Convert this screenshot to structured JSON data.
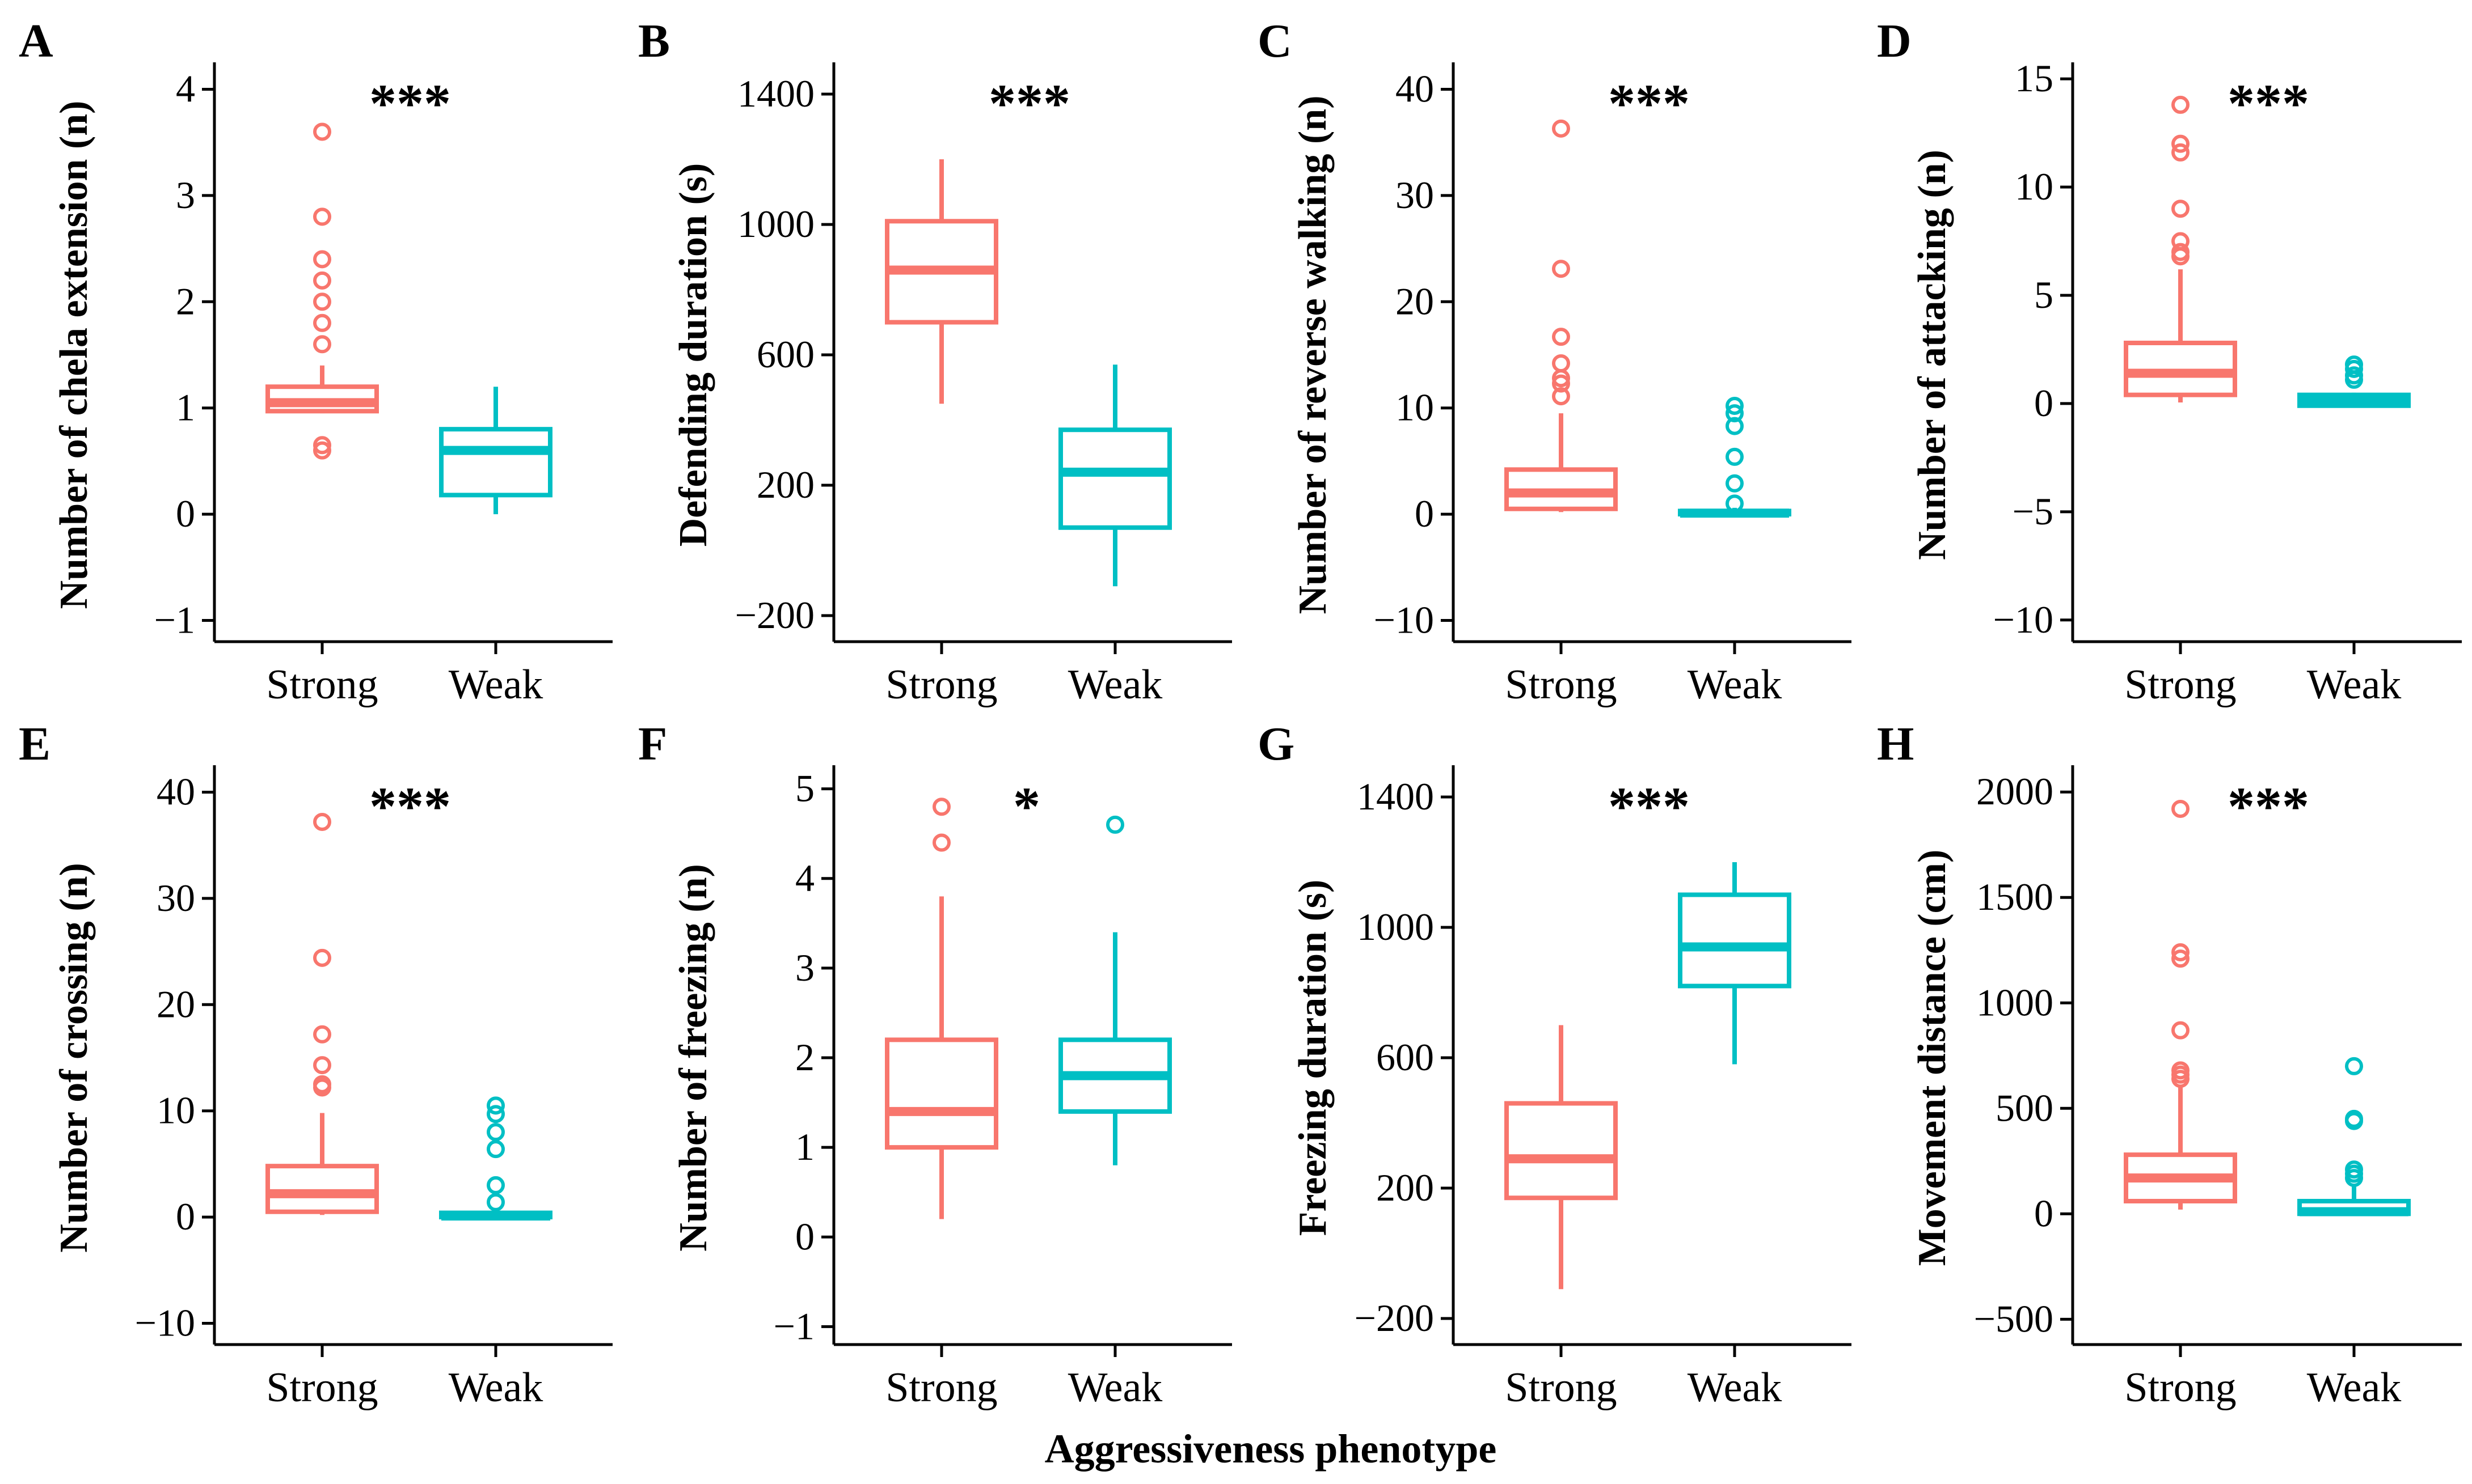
{
  "figure": {
    "xlabel": "Aggressiveness phenotype",
    "colors": {
      "Strong": "#f8766d",
      "Weak": "#00bfc4"
    }
  },
  "chart_data": [
    {
      "panel": "A",
      "type": "box",
      "ylabel": "Number of chela extension (n)",
      "significance": "***",
      "ylim": [
        -1.2,
        4.2
      ],
      "yticks": [
        -1,
        0,
        1,
        2,
        3,
        4
      ],
      "categories": [
        "Strong",
        "Weak"
      ],
      "boxes": [
        {
          "group": "Strong",
          "whisker_low": 0.95,
          "q1": 0.97,
          "median": 1.05,
          "q3": 1.2,
          "whisker_high": 1.4,
          "outliers": [
            3.6,
            2.8,
            2.4,
            2.2,
            2.0,
            1.8,
            1.6,
            0.65,
            0.6
          ]
        },
        {
          "group": "Weak",
          "whisker_low": 0.0,
          "q1": 0.18,
          "median": 0.6,
          "q3": 0.8,
          "whisker_high": 1.2,
          "outliers": []
        }
      ]
    },
    {
      "panel": "B",
      "type": "box",
      "ylabel": "Defending duration (s)",
      "significance": "***",
      "ylim": [
        -280,
        1480
      ],
      "yticks": [
        -200,
        200,
        600,
        1000,
        1400
      ],
      "categories": [
        "Strong",
        "Weak"
      ],
      "boxes": [
        {
          "group": "Strong",
          "whisker_low": 450,
          "q1": 700,
          "median": 860,
          "q3": 1010,
          "whisker_high": 1200,
          "outliers": []
        },
        {
          "group": "Weak",
          "whisker_low": -110,
          "q1": 70,
          "median": 240,
          "q3": 370,
          "whisker_high": 570,
          "outliers": []
        }
      ]
    },
    {
      "panel": "C",
      "type": "box",
      "ylabel": "Number of reverse walking (n)",
      "significance": "***",
      "ylim": [
        -12,
        42
      ],
      "yticks": [
        -10,
        0,
        10,
        20,
        30,
        40
      ],
      "categories": [
        "Strong",
        "Weak"
      ],
      "boxes": [
        {
          "group": "Strong",
          "whisker_low": 0.2,
          "q1": 0.5,
          "median": 2,
          "q3": 4.2,
          "whisker_high": 9.5,
          "outliers": [
            36.3,
            23.1,
            16.7,
            14.2,
            12.8,
            12.3,
            11.1
          ]
        },
        {
          "group": "Weak",
          "whisker_low": 0.0,
          "q1": 0.0,
          "median": 0.1,
          "q3": 0.3,
          "whisker_high": 0.6,
          "outliers": [
            10.2,
            9.5,
            8.3,
            5.4,
            2.9,
            1.0
          ]
        }
      ]
    },
    {
      "panel": "D",
      "type": "box",
      "ylabel": "Number of attacking (n)",
      "significance": "***",
      "ylim": [
        -11,
        15.5
      ],
      "yticks": [
        -10,
        -5,
        0,
        5,
        10,
        15
      ],
      "categories": [
        "Strong",
        "Weak"
      ],
      "boxes": [
        {
          "group": "Strong",
          "whisker_low": 0.05,
          "q1": 0.4,
          "median": 1.4,
          "q3": 2.8,
          "whisker_high": 6.2,
          "outliers": [
            13.8,
            12.0,
            11.6,
            9.0,
            7.5,
            7.0,
            6.8
          ]
        },
        {
          "group": "Weak",
          "whisker_low": -0.15,
          "q1": -0.1,
          "median": 0.1,
          "q3": 0.4,
          "whisker_high": 0.5,
          "outliers": [
            1.8,
            1.6,
            1.3,
            1.1
          ]
        }
      ]
    },
    {
      "panel": "E",
      "type": "box",
      "ylabel": "Number of crossing (n)",
      "significance": "***",
      "ylim": [
        -12,
        42
      ],
      "yticks": [
        -10,
        0,
        10,
        20,
        30,
        40
      ],
      "categories": [
        "Strong",
        "Weak"
      ],
      "boxes": [
        {
          "group": "Strong",
          "whisker_low": 0.2,
          "q1": 0.5,
          "median": 2.2,
          "q3": 4.8,
          "whisker_high": 9.8,
          "outliers": [
            37.2,
            24.4,
            17.2,
            14.3,
            12.5,
            12.2
          ]
        },
        {
          "group": "Weak",
          "whisker_low": 0.0,
          "q1": 0.0,
          "median": 0.1,
          "q3": 0.4,
          "whisker_high": 0.8,
          "outliers": [
            10.5,
            9.7,
            8.0,
            6.4,
            3.0,
            1.4
          ]
        }
      ]
    },
    {
      "panel": "F",
      "type": "box",
      "ylabel": "Number of freezing (n)",
      "significance": "*",
      "ylim": [
        -1.2,
        5.2
      ],
      "yticks": [
        -1,
        0,
        1,
        2,
        3,
        4,
        5
      ],
      "categories": [
        "Strong",
        "Weak"
      ],
      "boxes": [
        {
          "group": "Strong",
          "whisker_low": 0.2,
          "q1": 1.0,
          "median": 1.4,
          "q3": 2.2,
          "whisker_high": 3.8,
          "outliers": [
            4.8,
            4.4
          ]
        },
        {
          "group": "Weak",
          "whisker_low": 0.8,
          "q1": 1.4,
          "median": 1.8,
          "q3": 2.2,
          "whisker_high": 3.4,
          "outliers": [
            4.6
          ]
        }
      ]
    },
    {
      "panel": "G",
      "type": "box",
      "ylabel": "Freezing duration (s)",
      "significance": "***",
      "ylim": [
        -280,
        1480
      ],
      "yticks": [
        -200,
        200,
        600,
        1000,
        1400
      ],
      "categories": [
        "Strong",
        "Weak"
      ],
      "boxes": [
        {
          "group": "Strong",
          "whisker_low": -110,
          "q1": 170,
          "median": 290,
          "q3": 460,
          "whisker_high": 700,
          "outliers": []
        },
        {
          "group": "Weak",
          "whisker_low": 580,
          "q1": 820,
          "median": 940,
          "q3": 1100,
          "whisker_high": 1200,
          "outliers": []
        }
      ]
    },
    {
      "panel": "H",
      "type": "box",
      "ylabel": "Movement distance (cm)",
      "significance": "***",
      "ylim": [
        -620,
        2100
      ],
      "yticks": [
        -500,
        0,
        500,
        1000,
        1500,
        2000
      ],
      "categories": [
        "Strong",
        "Weak"
      ],
      "boxes": [
        {
          "group": "Strong",
          "whisker_low": 20,
          "q1": 60,
          "median": 170,
          "q3": 280,
          "whisker_high": 600,
          "outliers": [
            1920,
            1240,
            1210,
            870,
            680,
            660,
            640
          ]
        },
        {
          "group": "Weak",
          "whisker_low": 0,
          "q1": 0,
          "median": 10,
          "q3": 60,
          "whisker_high": 140,
          "outliers": [
            700,
            450,
            440,
            210,
            190,
            170
          ]
        }
      ]
    }
  ]
}
